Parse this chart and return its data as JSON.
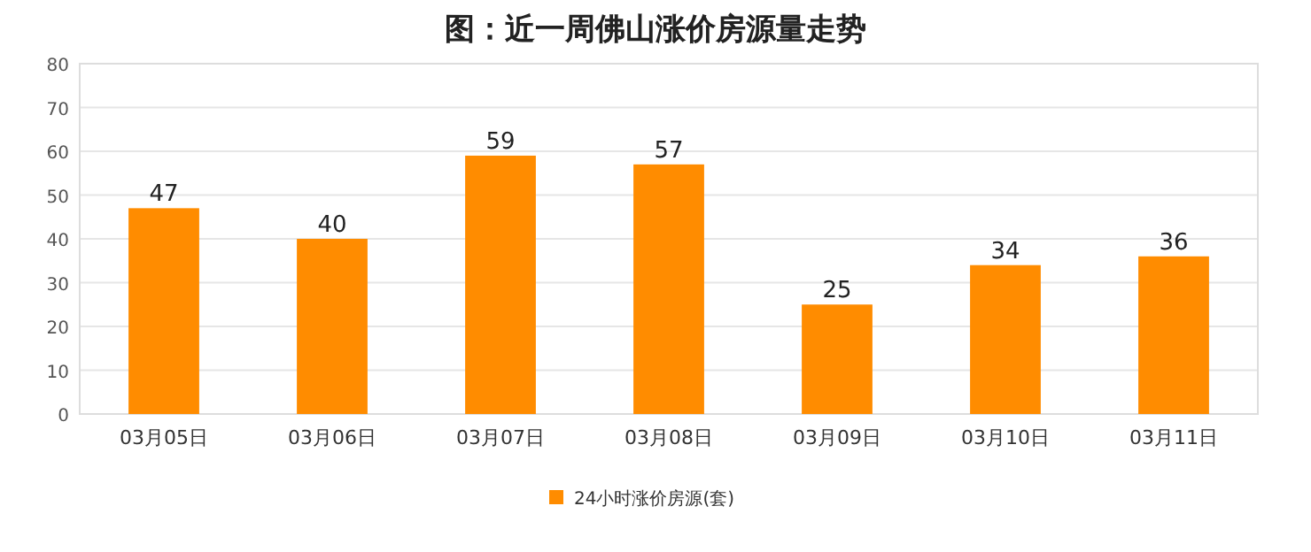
{
  "chart_data": {
    "type": "bar",
    "title": "图：近一周佛山涨价房源量走势",
    "categories": [
      "03月05日",
      "03月06日",
      "03月07日",
      "03月08日",
      "03月09日",
      "03月10日",
      "03月11日"
    ],
    "series": [
      {
        "name": "24小时涨价房源(套)",
        "color": "#ff8c00",
        "values": [
          47,
          40,
          59,
          57,
          25,
          34,
          36
        ]
      }
    ],
    "ylim": [
      0,
      80
    ],
    "yticks": [
      0,
      10,
      20,
      30,
      40,
      50,
      60,
      70,
      80
    ],
    "grid": "y",
    "legend": "bottom",
    "data_labels": true
  }
}
